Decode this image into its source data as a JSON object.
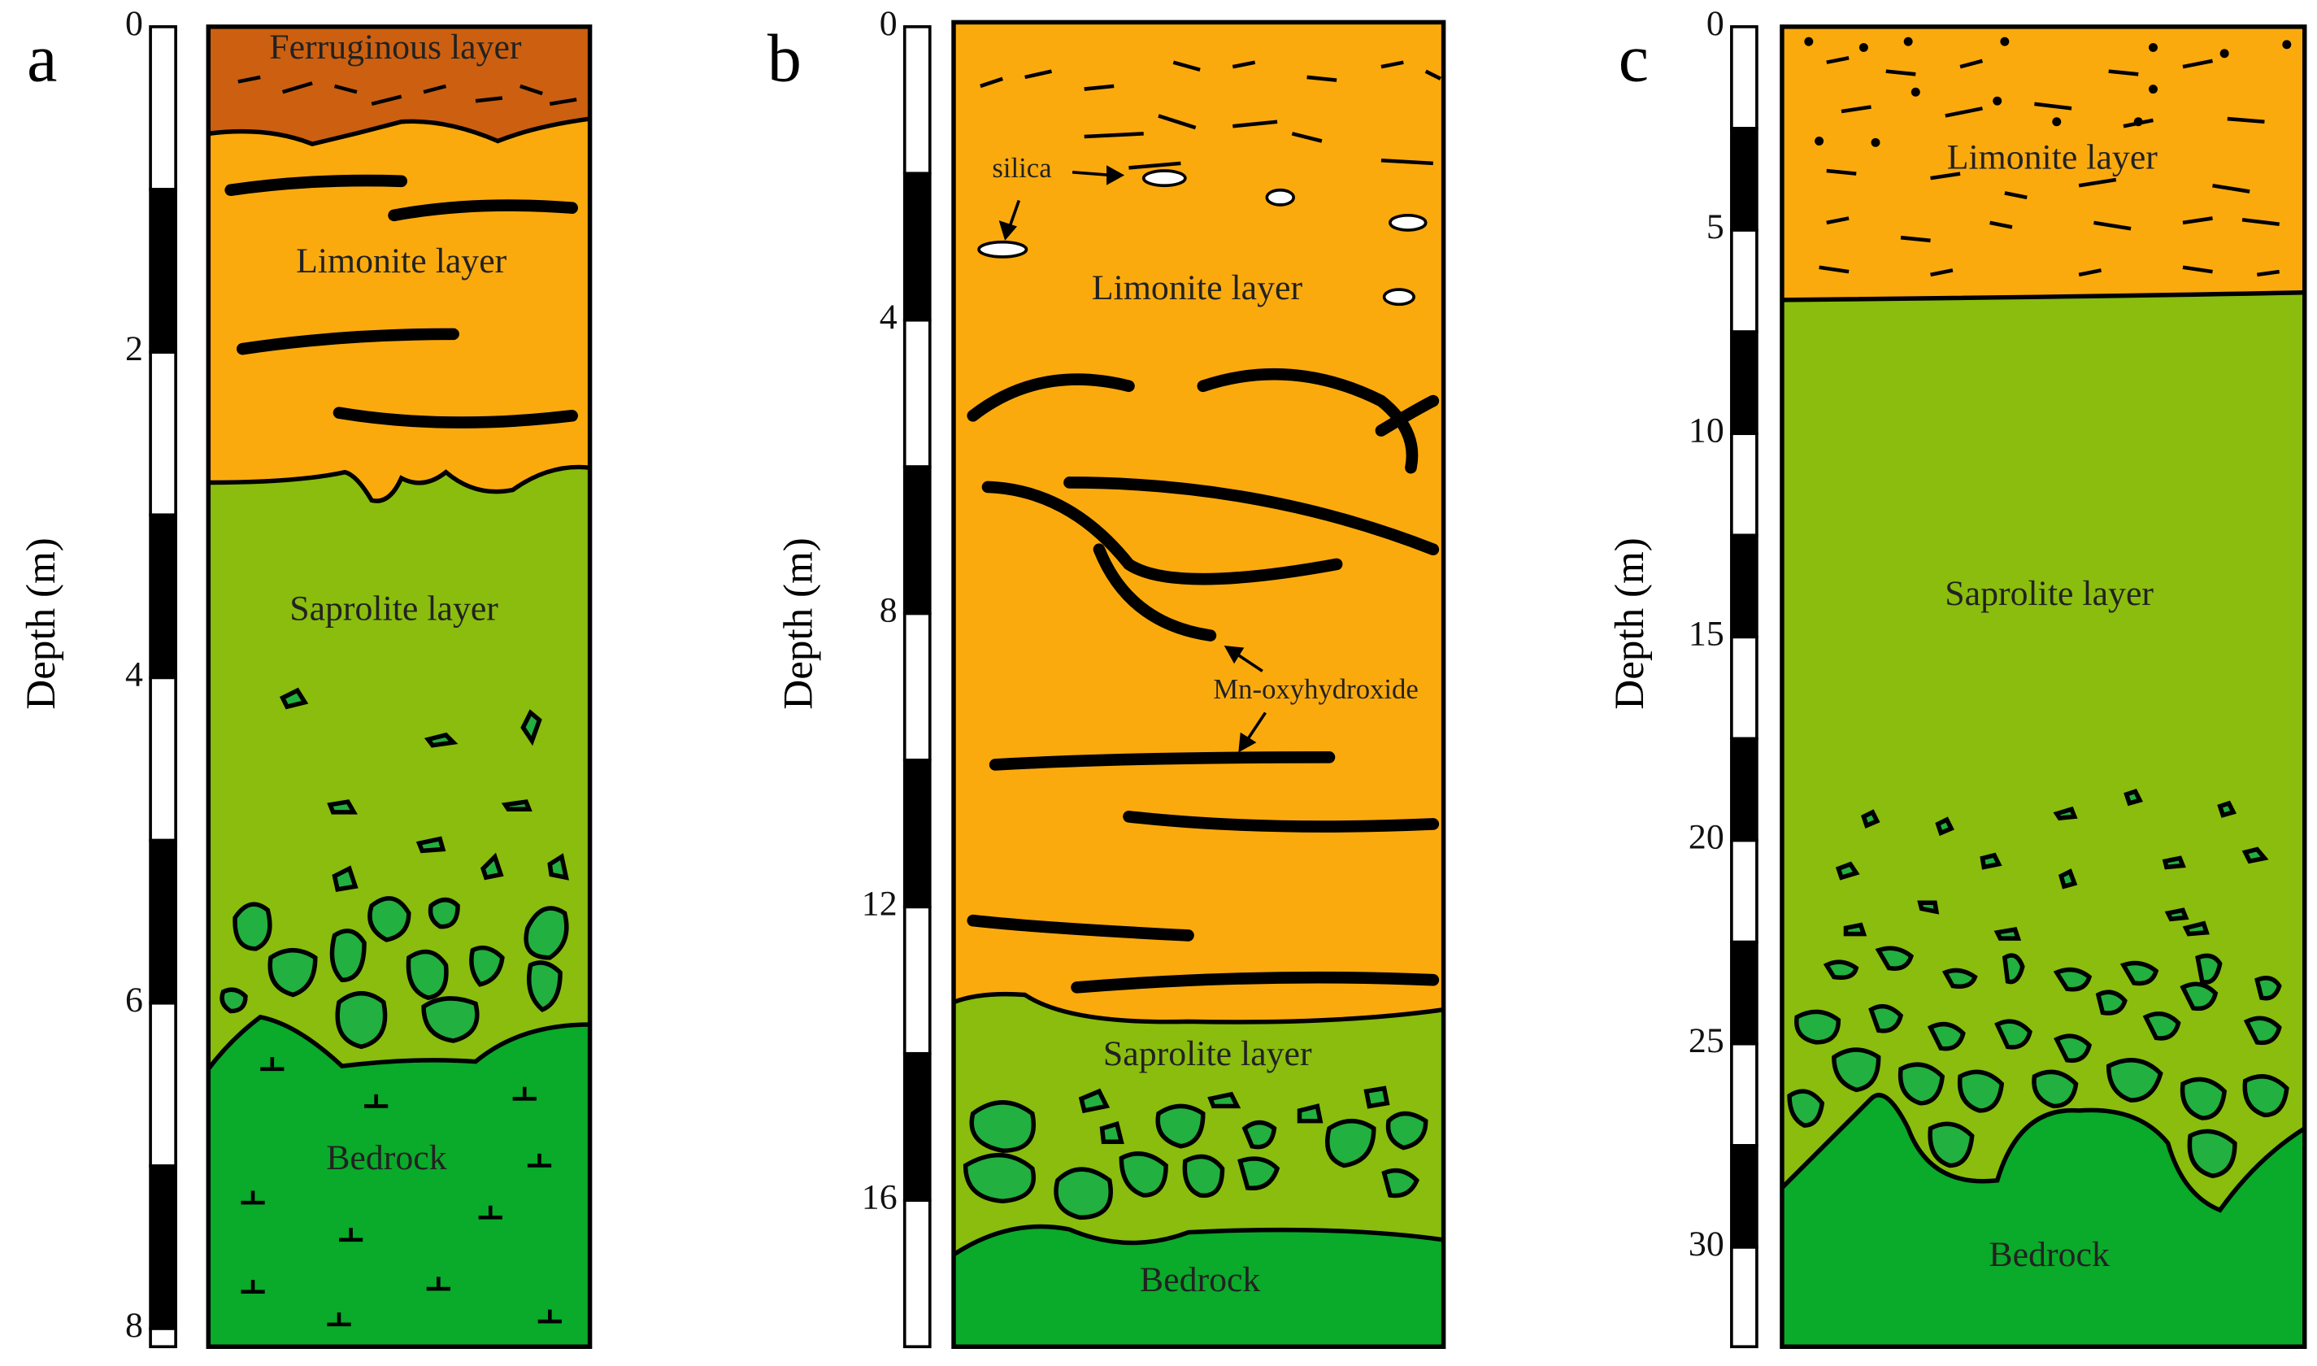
{
  "panels": [
    {
      "label": "a",
      "axis_label": "Depth (m)",
      "ticks": [
        0,
        2,
        4,
        6,
        8
      ],
      "layers": [
        "Ferruginous layer",
        "Limonite layer",
        "Saprolite layer",
        "Bedrock"
      ]
    },
    {
      "label": "b",
      "axis_label": "Depth (m)",
      "ticks": [
        0,
        4,
        8,
        12,
        16
      ],
      "layers": [
        "Limonite layer",
        "Saprolite layer",
        "Bedrock"
      ],
      "annotations": [
        "silica",
        "Mn-oxyhydroxide"
      ]
    },
    {
      "label": "c",
      "axis_label": "Depth (m)",
      "ticks": [
        0,
        5,
        10,
        15,
        20,
        25,
        30
      ],
      "layers": [
        "Limonite layer",
        "Saprolite layer",
        "Bedrock"
      ]
    }
  ]
}
